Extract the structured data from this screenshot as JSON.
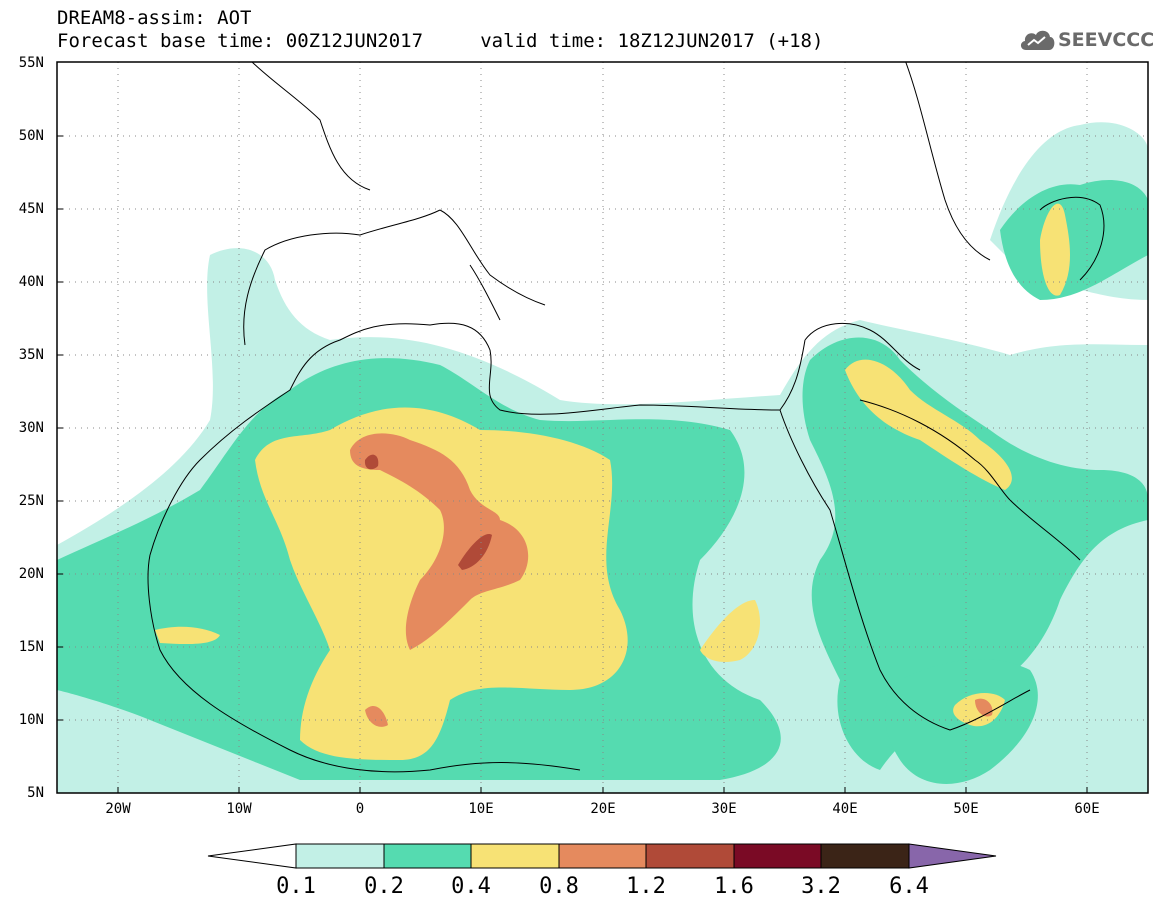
{
  "title": {
    "line1": "DREAM8-assim: AOT",
    "line2": "Forecast base time: 00Z12JUN2017     valid time: 18Z12JUN2017 (+18)"
  },
  "logo": {
    "text": "SEEVCCC",
    "icon": "cloud-icon"
  },
  "map": {
    "lon_range": [
      -25,
      65
    ],
    "lat_range": [
      5,
      55
    ],
    "lat_ticks": [
      "5N",
      "10N",
      "15N",
      "20N",
      "25N",
      "30N",
      "35N",
      "40N",
      "45N",
      "50N",
      "55N"
    ],
    "lon_ticks": [
      "20W",
      "10W",
      "0",
      "10E",
      "20E",
      "30E",
      "40E",
      "50E",
      "60E"
    ],
    "grid": "dotted"
  },
  "colorbar": {
    "labels": [
      "0.1",
      "0.2",
      "0.4",
      "0.8",
      "1.2",
      "1.6",
      "3.2",
      "6.4"
    ],
    "colors": [
      "#ffffff",
      "#c2f0e6",
      "#55dbb0",
      "#f7e275",
      "#e58a5e",
      "#b04a38",
      "#7a0a25",
      "#3b2417",
      "#8866aa"
    ]
  },
  "colors": {
    "c1": "#c2f0e6",
    "c2": "#55dbb0",
    "c3": "#f7e275",
    "c4": "#e58a5e",
    "c5": "#b04a38"
  }
}
